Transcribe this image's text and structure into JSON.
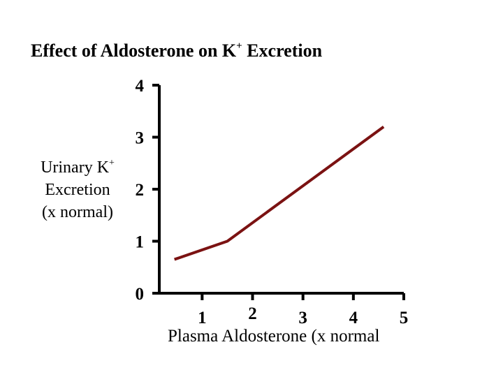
{
  "title": {
    "main": "Effect of Aldosterone on K",
    "superscript": "+",
    "tail": " Excretion"
  },
  "ylabel": {
    "line1_main": "Urinary K",
    "line1_superscript": "+",
    "line2": "Excretion",
    "line3": "(x normal)"
  },
  "xlabel": "Plasma Aldosterone (x normal",
  "colors": {
    "series": "#7b1212",
    "axis": "#000000"
  },
  "chart_data": {
    "type": "line",
    "title": "Effect of Aldosterone on K+ Excretion",
    "xlabel": "Plasma Aldosterone (x normal",
    "ylabel": "Urinary K+ Excretion (x normal)",
    "x_ticks": [
      "1",
      "2",
      "3",
      "4",
      "5"
    ],
    "y_ticks": [
      "0",
      "1",
      "2",
      "3",
      "4"
    ],
    "xlim": [
      0.15,
      5
    ],
    "ylim": [
      0,
      4
    ],
    "grid": false,
    "series": [
      {
        "x": [
          0.45,
          1.5,
          4.6
        ],
        "y": [
          0.65,
          1.0,
          3.2
        ]
      }
    ]
  }
}
